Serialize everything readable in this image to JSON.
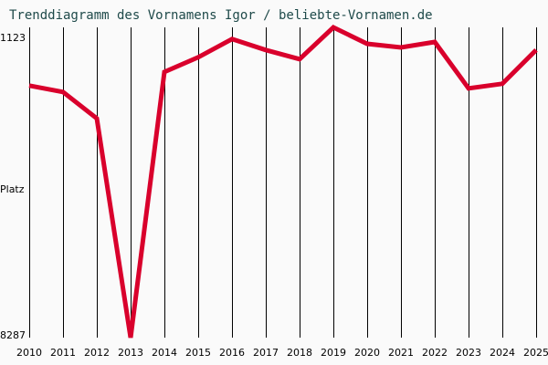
{
  "title": "Trenddiagramm des Vornamens Igor / beliebte-Vornamen.de",
  "y_axis": {
    "top_label": "1123",
    "mid_label": "Platz",
    "bottom_label": "8287"
  },
  "colors": {
    "line": "#d9002c",
    "grid": "#000000",
    "title": "#1f4a4a",
    "background": "#fafafa"
  },
  "chart_data": {
    "type": "line",
    "title": "Trenddiagramm des Vornamens Igor / beliebte-Vornamen.de",
    "xlabel": "",
    "ylabel": "Platz",
    "ylim": [
      8287,
      1123
    ],
    "y_inverted": true,
    "grid": "vertical",
    "legend": "none",
    "categories": [
      "2010",
      "2011",
      "2012",
      "2013",
      "2014",
      "2015",
      "2016",
      "2017",
      "2018",
      "2019",
      "2020",
      "2021",
      "2022",
      "2023",
      "2024",
      "2025"
    ],
    "series": [
      {
        "name": "Igor",
        "values": [
          2467,
          2615,
          3226,
          8287,
          2151,
          1814,
          1392,
          1645,
          1856,
          1123,
          1502,
          1587,
          1460,
          2530,
          2425,
          1645
        ]
      }
    ]
  }
}
